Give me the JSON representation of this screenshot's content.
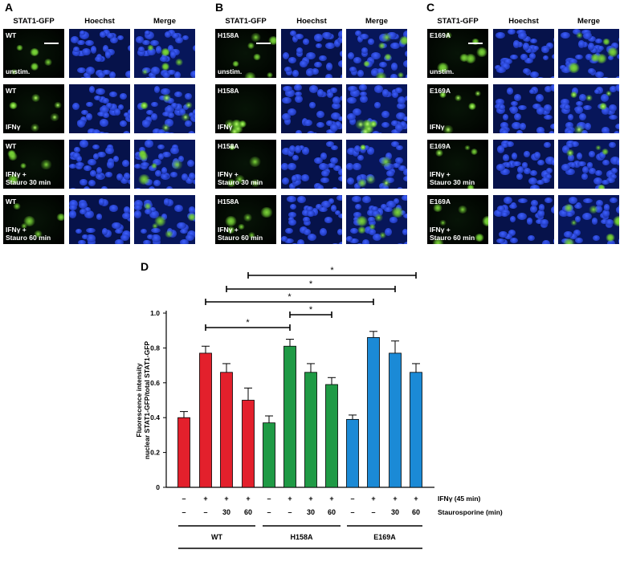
{
  "panels": [
    {
      "letter": "A",
      "mutant": "WT"
    },
    {
      "letter": "B",
      "mutant": "H158A"
    },
    {
      "letter": "C",
      "mutant": "E169A"
    }
  ],
  "columns": [
    "STAT1-GFP",
    "Hoechst",
    "Merge"
  ],
  "conditions": [
    {
      "lines": [
        "unstim."
      ]
    },
    {
      "lines": [
        "IFNγ"
      ]
    },
    {
      "lines": [
        "IFNγ +",
        "Stauro 30 min"
      ]
    },
    {
      "lines": [
        "IFNγ +",
        "Stauro 60 min"
      ]
    }
  ],
  "panel_d_letter": "D",
  "colors": {
    "WT": "#e3202c",
    "H158A": "#1f9a45",
    "E169A": "#1b8ad6",
    "gfp": "#7fd63a",
    "hoechst": "#2a46d8"
  },
  "chart_data": {
    "type": "bar",
    "ylabel_lines": [
      "Fluorescence intensity",
      "nuclear STAT1-GFP/total STAT1-GFP"
    ],
    "ylim": [
      0,
      1.0
    ],
    "yticks": [
      "0",
      "0.2",
      "0.4",
      "0.6",
      "0.8",
      "1.0"
    ],
    "ytick_values": [
      0,
      0.2,
      0.4,
      0.6,
      0.8,
      1.0
    ],
    "groups": [
      "WT",
      "H158A",
      "E169A"
    ],
    "series": [
      {
        "name": "WT",
        "values": [
          0.4,
          0.77,
          0.66,
          0.5
        ],
        "errors": [
          0.035,
          0.04,
          0.05,
          0.07
        ]
      },
      {
        "name": "H158A",
        "values": [
          0.37,
          0.81,
          0.66,
          0.59
        ],
        "errors": [
          0.04,
          0.04,
          0.05,
          0.04
        ]
      },
      {
        "name": "E169A",
        "values": [
          0.39,
          0.86,
          0.77,
          0.66
        ],
        "errors": [
          0.025,
          0.035,
          0.07,
          0.05
        ]
      }
    ],
    "ifn_row": [
      "–",
      "+",
      "+",
      "+"
    ],
    "stauro_row": [
      "–",
      "–",
      "30",
      "60"
    ],
    "ifn_label": "IFNγ (45 min)",
    "stauro_label": "Staurosporine (min)",
    "significance": [
      {
        "from": 1,
        "to": 5,
        "label": "*"
      },
      {
        "from": 5,
        "to": 7,
        "label": "*"
      },
      {
        "from": 1,
        "to": 9,
        "label": "*"
      },
      {
        "from": 2,
        "to": 10,
        "label": "*"
      },
      {
        "from": 3,
        "to": 11,
        "label": "*"
      }
    ]
  }
}
